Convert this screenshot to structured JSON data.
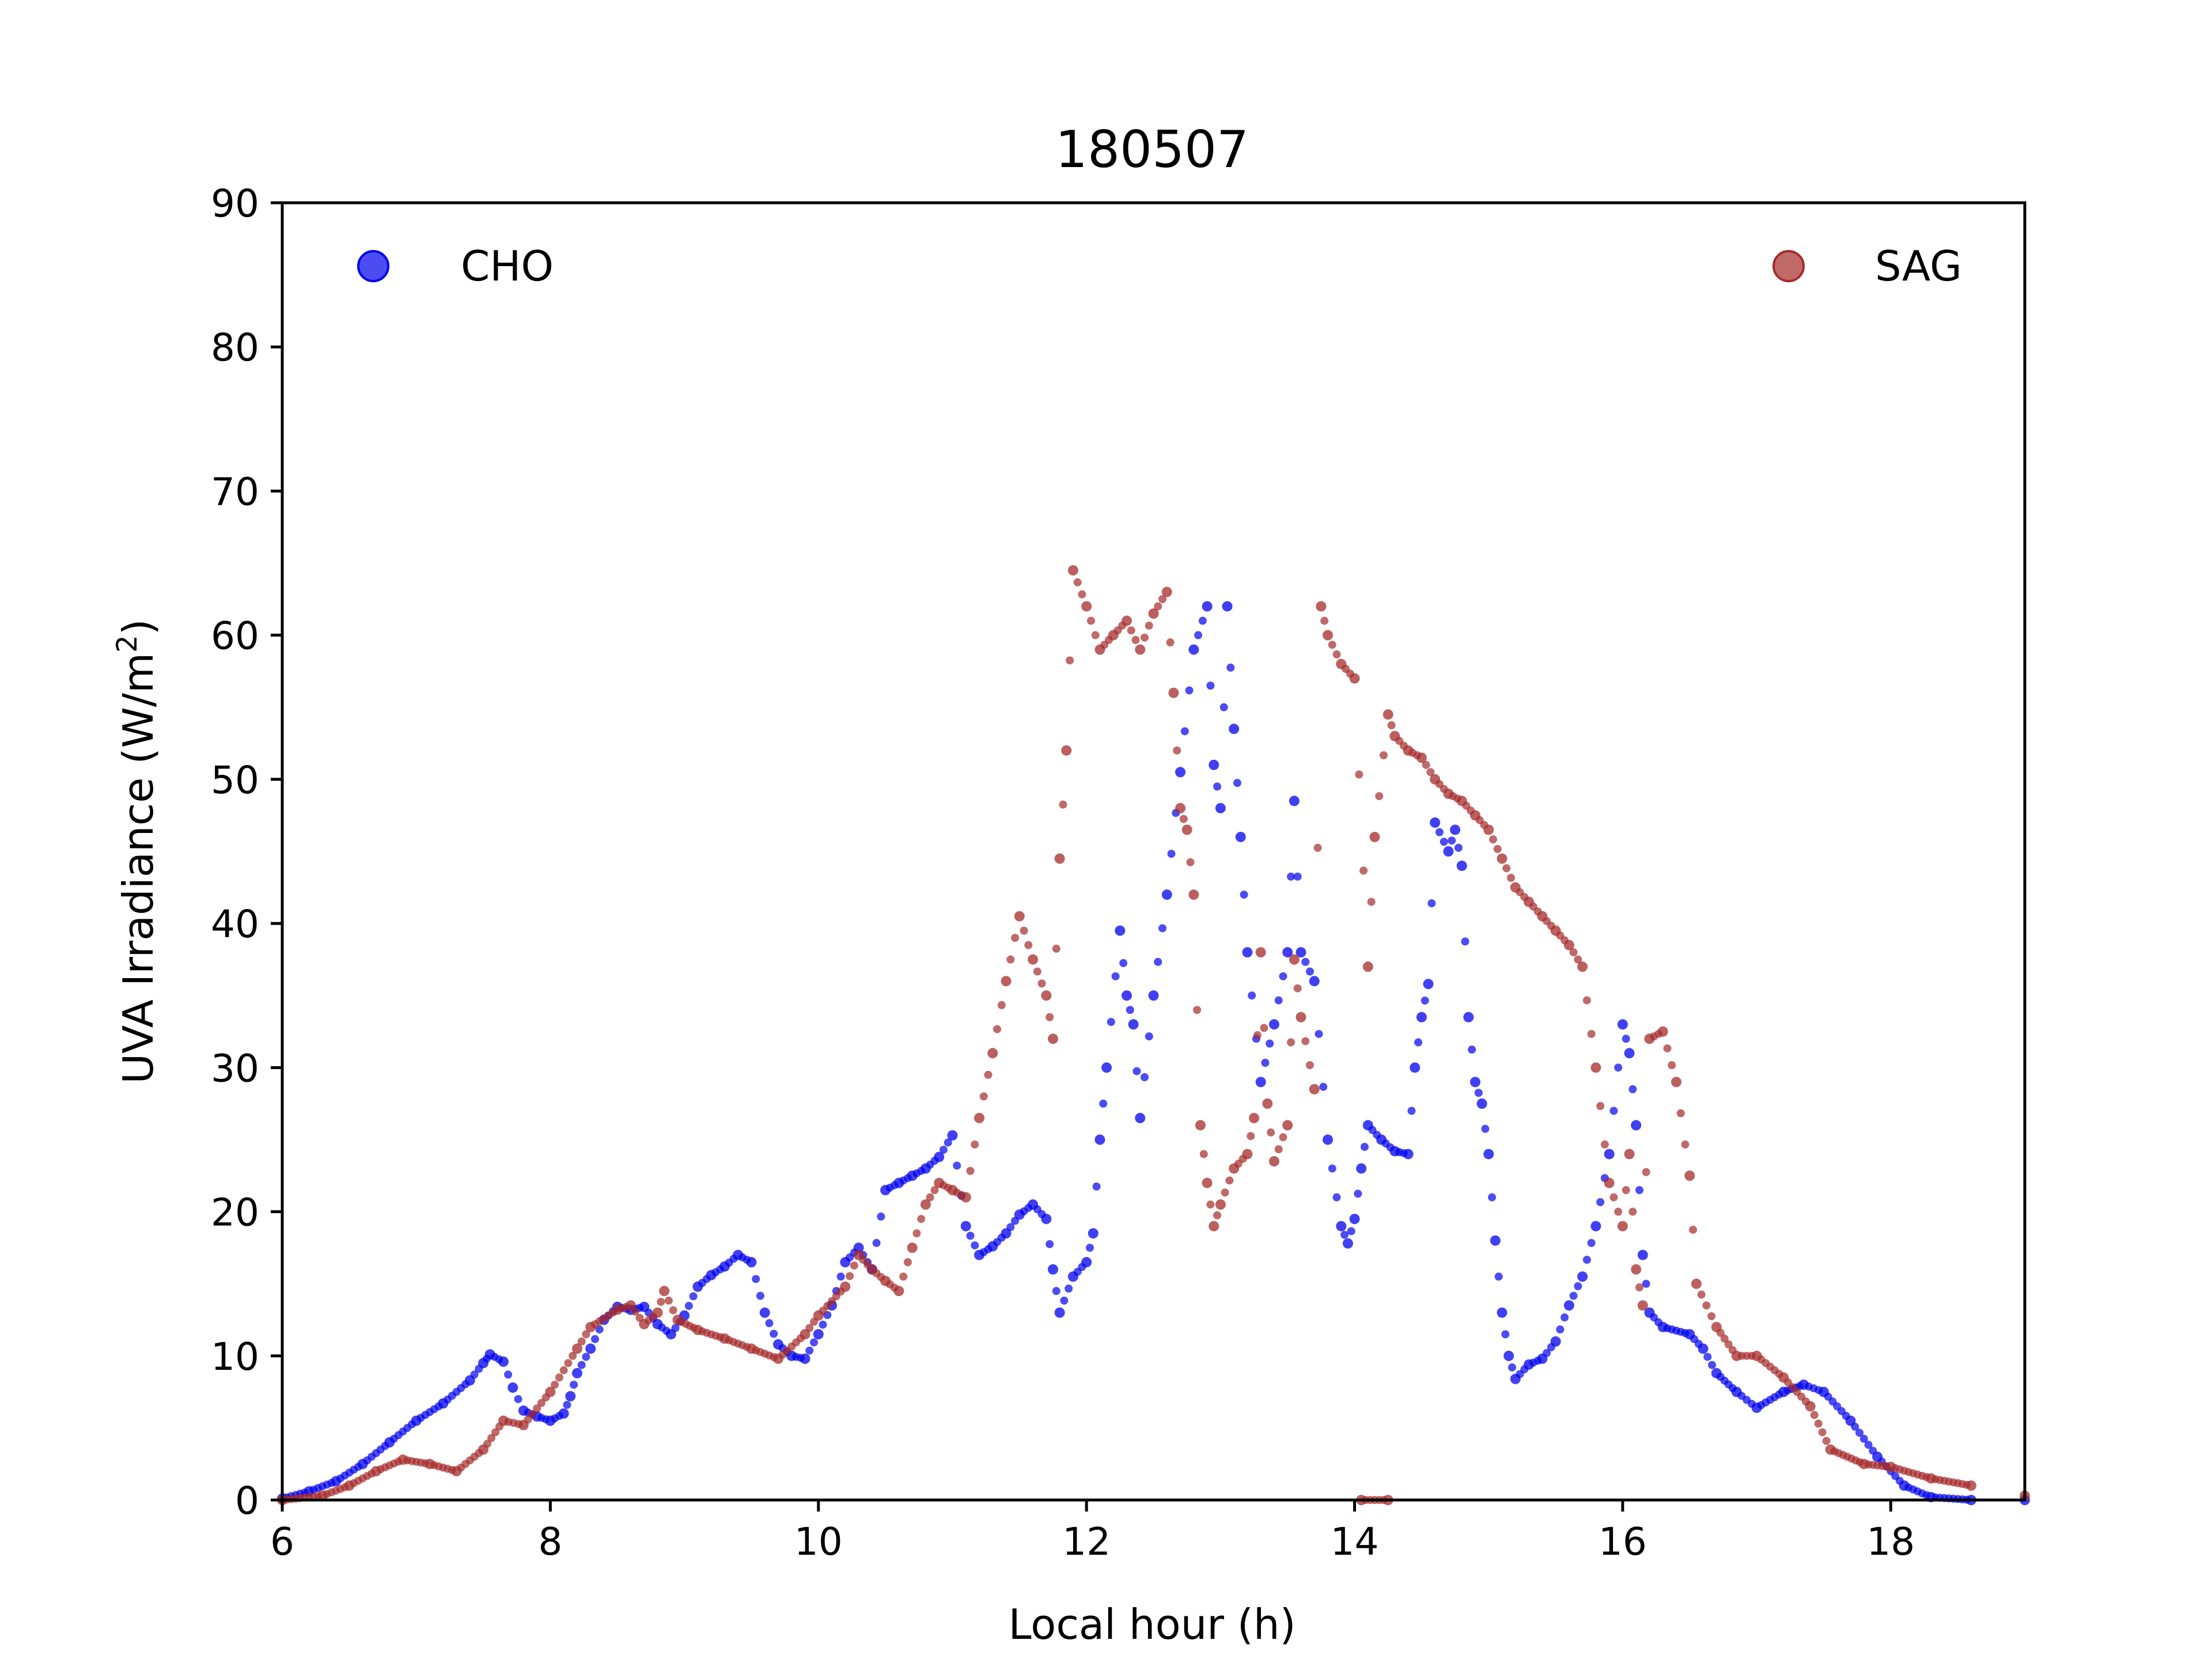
{
  "chart_data": {
    "type": "scatter",
    "title": "180507",
    "xlabel": "Local hour (h)",
    "ylabel": "UVA Irradiance (W/m²)",
    "ylabel_parts": {
      "main": "UVA Irradiance (W/m",
      "sup": "2",
      "end": ")"
    },
    "xlim": [
      6,
      19
    ],
    "ylim": [
      0,
      90
    ],
    "x_ticks": [
      "6",
      "8",
      "10",
      "12",
      "14",
      "16",
      "18"
    ],
    "y_ticks": [
      "0",
      "10",
      "20",
      "30",
      "40",
      "50",
      "60",
      "70",
      "80",
      "90"
    ],
    "grid": false,
    "legend_placement": "top-left and top-right",
    "series": [
      {
        "name": "CHO",
        "color": "#0000ee",
        "legend_position": "top-left",
        "points": [
          [
            6.0,
            0.1
          ],
          [
            6.2,
            0.6
          ],
          [
            6.4,
            1.3
          ],
          [
            6.6,
            2.5
          ],
          [
            6.8,
            4.0
          ],
          [
            7.0,
            5.5
          ],
          [
            7.2,
            6.7
          ],
          [
            7.4,
            8.3
          ],
          [
            7.5,
            9.5
          ],
          [
            7.55,
            10.1
          ],
          [
            7.65,
            9.6
          ],
          [
            7.72,
            7.8
          ],
          [
            7.8,
            6.2
          ],
          [
            7.9,
            5.8
          ],
          [
            8.0,
            5.5
          ],
          [
            8.1,
            6.0
          ],
          [
            8.15,
            7.2
          ],
          [
            8.2,
            8.8
          ],
          [
            8.3,
            10.5
          ],
          [
            8.4,
            12.5
          ],
          [
            8.5,
            13.4
          ],
          [
            8.6,
            13.2
          ],
          [
            8.7,
            13.4
          ],
          [
            8.8,
            12.2
          ],
          [
            8.9,
            11.5
          ],
          [
            9.0,
            12.8
          ],
          [
            9.1,
            14.8
          ],
          [
            9.2,
            15.6
          ],
          [
            9.3,
            16.2
          ],
          [
            9.4,
            17.0
          ],
          [
            9.5,
            16.5
          ],
          [
            9.6,
            13.0
          ],
          [
            9.7,
            10.8
          ],
          [
            9.8,
            10.0
          ],
          [
            9.9,
            9.8
          ],
          [
            10.0,
            11.5
          ],
          [
            10.1,
            13.5
          ],
          [
            10.2,
            16.5
          ],
          [
            10.3,
            17.5
          ],
          [
            10.4,
            16.0
          ],
          [
            10.5,
            21.5
          ],
          [
            10.6,
            22.0
          ],
          [
            10.7,
            22.5
          ],
          [
            10.8,
            23.0
          ],
          [
            10.9,
            23.8
          ],
          [
            11.0,
            25.3
          ],
          [
            11.1,
            19.0
          ],
          [
            11.2,
            17.0
          ],
          [
            11.3,
            17.6
          ],
          [
            11.4,
            18.5
          ],
          [
            11.5,
            19.8
          ],
          [
            11.6,
            20.5
          ],
          [
            11.7,
            19.5
          ],
          [
            11.75,
            16.0
          ],
          [
            11.8,
            13.0
          ],
          [
            11.9,
            15.5
          ],
          [
            12.0,
            16.5
          ],
          [
            12.05,
            18.5
          ],
          [
            12.1,
            25.0
          ],
          [
            12.15,
            30.0
          ],
          [
            12.25,
            39.5
          ],
          [
            12.3,
            35.0
          ],
          [
            12.35,
            33.0
          ],
          [
            12.4,
            26.5
          ],
          [
            12.5,
            35.0
          ],
          [
            12.6,
            42.0
          ],
          [
            12.7,
            50.5
          ],
          [
            12.8,
            59.0
          ],
          [
            12.9,
            62.0
          ],
          [
            12.95,
            51.0
          ],
          [
            13.0,
            48.0
          ],
          [
            13.05,
            62.0
          ],
          [
            13.1,
            53.5
          ],
          [
            13.15,
            46.0
          ],
          [
            13.2,
            38.0
          ],
          [
            13.3,
            29.0
          ],
          [
            13.4,
            33.0
          ],
          [
            13.5,
            38.0
          ],
          [
            13.55,
            48.5
          ],
          [
            13.6,
            38.0
          ],
          [
            13.7,
            36.0
          ],
          [
            13.8,
            25.0
          ],
          [
            13.9,
            19.0
          ],
          [
            13.95,
            17.8
          ],
          [
            14.0,
            19.5
          ],
          [
            14.05,
            23.0
          ],
          [
            14.1,
            26.0
          ],
          [
            14.2,
            25.0
          ],
          [
            14.3,
            24.2
          ],
          [
            14.4,
            24.0
          ],
          [
            14.45,
            30.0
          ],
          [
            14.5,
            33.5
          ],
          [
            14.55,
            35.8
          ],
          [
            14.6,
            47.0
          ],
          [
            14.7,
            45.0
          ],
          [
            14.75,
            46.5
          ],
          [
            14.8,
            44.0
          ],
          [
            14.85,
            33.5
          ],
          [
            14.9,
            29.0
          ],
          [
            14.95,
            27.5
          ],
          [
            15.0,
            24.0
          ],
          [
            15.05,
            18.0
          ],
          [
            15.1,
            13.0
          ],
          [
            15.15,
            10.0
          ],
          [
            15.2,
            8.4
          ],
          [
            15.3,
            9.4
          ],
          [
            15.4,
            9.8
          ],
          [
            15.5,
            11.0
          ],
          [
            15.6,
            13.5
          ],
          [
            15.7,
            15.5
          ],
          [
            15.8,
            19.0
          ],
          [
            15.9,
            24.0
          ],
          [
            16.0,
            33.0
          ],
          [
            16.05,
            31.0
          ],
          [
            16.1,
            26.0
          ],
          [
            16.15,
            17.0
          ],
          [
            16.2,
            13.0
          ],
          [
            16.3,
            12.0
          ],
          [
            16.5,
            11.5
          ],
          [
            16.6,
            10.5
          ],
          [
            16.7,
            8.8
          ],
          [
            16.85,
            7.5
          ],
          [
            17.0,
            6.4
          ],
          [
            17.2,
            7.5
          ],
          [
            17.35,
            8.0
          ],
          [
            17.5,
            7.5
          ],
          [
            17.7,
            5.5
          ],
          [
            17.9,
            3.0
          ],
          [
            18.1,
            1.0
          ],
          [
            18.3,
            0.2
          ],
          [
            18.6,
            0.0
          ],
          [
            19.0,
            0.0
          ]
        ]
      },
      {
        "name": "SAG",
        "color": "#a52a2a",
        "legend_position": "top-right",
        "points": [
          [
            6.0,
            0.0
          ],
          [
            6.3,
            0.3
          ],
          [
            6.5,
            1.0
          ],
          [
            6.7,
            2.0
          ],
          [
            6.9,
            2.8
          ],
          [
            7.1,
            2.5
          ],
          [
            7.3,
            2.0
          ],
          [
            7.5,
            3.5
          ],
          [
            7.65,
            5.5
          ],
          [
            7.8,
            5.2
          ],
          [
            8.0,
            7.5
          ],
          [
            8.2,
            10.5
          ],
          [
            8.3,
            12.0
          ],
          [
            8.5,
            13.2
          ],
          [
            8.6,
            13.5
          ],
          [
            8.7,
            12.2
          ],
          [
            8.8,
            13.0
          ],
          [
            8.85,
            14.5
          ],
          [
            8.95,
            12.5
          ],
          [
            9.1,
            11.8
          ],
          [
            9.3,
            11.2
          ],
          [
            9.5,
            10.5
          ],
          [
            9.7,
            9.8
          ],
          [
            9.9,
            11.5
          ],
          [
            10.0,
            12.8
          ],
          [
            10.2,
            14.8
          ],
          [
            10.3,
            17.0
          ],
          [
            10.4,
            16.0
          ],
          [
            10.5,
            15.2
          ],
          [
            10.6,
            14.5
          ],
          [
            10.7,
            17.5
          ],
          [
            10.8,
            20.5
          ],
          [
            10.9,
            22.0
          ],
          [
            11.0,
            21.5
          ],
          [
            11.1,
            21.0
          ],
          [
            11.2,
            26.5
          ],
          [
            11.3,
            31.0
          ],
          [
            11.4,
            36.0
          ],
          [
            11.5,
            40.5
          ],
          [
            11.6,
            37.5
          ],
          [
            11.7,
            35.0
          ],
          [
            11.75,
            32.0
          ],
          [
            11.8,
            44.5
          ],
          [
            11.85,
            52.0
          ],
          [
            11.9,
            64.5
          ],
          [
            12.0,
            62.0
          ],
          [
            12.1,
            59.0
          ],
          [
            12.2,
            60.0
          ],
          [
            12.3,
            61.0
          ],
          [
            12.4,
            59.0
          ],
          [
            12.5,
            61.5
          ],
          [
            12.6,
            63.0
          ],
          [
            12.65,
            56.0
          ],
          [
            12.7,
            48.0
          ],
          [
            12.75,
            46.5
          ],
          [
            12.8,
            42.0
          ],
          [
            12.85,
            26.0
          ],
          [
            12.9,
            22.0
          ],
          [
            12.95,
            19.0
          ],
          [
            13.0,
            20.5
          ],
          [
            13.1,
            23.0
          ],
          [
            13.2,
            24.0
          ],
          [
            13.25,
            26.5
          ],
          [
            13.3,
            38.0
          ],
          [
            13.35,
            27.5
          ],
          [
            13.4,
            23.5
          ],
          [
            13.5,
            26.0
          ],
          [
            13.55,
            37.5
          ],
          [
            13.6,
            33.5
          ],
          [
            13.7,
            28.5
          ],
          [
            13.75,
            62.0
          ],
          [
            13.8,
            60.0
          ],
          [
            13.9,
            58.0
          ],
          [
            14.0,
            57.0
          ],
          [
            14.1,
            37.0
          ],
          [
            14.15,
            46.0
          ],
          [
            14.25,
            54.5
          ],
          [
            14.3,
            53.0
          ],
          [
            14.4,
            52.0
          ],
          [
            14.5,
            51.5
          ],
          [
            14.6,
            50.0
          ],
          [
            14.7,
            49.0
          ],
          [
            14.8,
            48.5
          ],
          [
            14.9,
            47.5
          ],
          [
            15.0,
            46.5
          ],
          [
            15.1,
            44.5
          ],
          [
            15.2,
            42.5
          ],
          [
            15.3,
            41.5
          ],
          [
            15.4,
            40.5
          ],
          [
            15.5,
            39.5
          ],
          [
            15.6,
            38.5
          ],
          [
            15.7,
            37.0
          ],
          [
            15.8,
            30.0
          ],
          [
            15.9,
            22.0
          ],
          [
            16.0,
            19.0
          ],
          [
            16.05,
            24.0
          ],
          [
            16.1,
            16.0
          ],
          [
            16.15,
            13.5
          ],
          [
            16.2,
            32.0
          ],
          [
            16.3,
            32.5
          ],
          [
            16.4,
            29.0
          ],
          [
            16.5,
            22.5
          ],
          [
            16.55,
            15.0
          ],
          [
            16.7,
            12.0
          ],
          [
            16.85,
            10.0
          ],
          [
            17.0,
            10.0
          ],
          [
            17.2,
            8.5
          ],
          [
            17.4,
            6.5
          ],
          [
            17.55,
            3.5
          ],
          [
            17.8,
            2.5
          ],
          [
            18.0,
            2.3
          ],
          [
            18.3,
            1.5
          ],
          [
            18.6,
            1.0
          ],
          [
            19.0,
            0.3
          ],
          [
            14.05,
            0.0
          ],
          [
            14.25,
            0.0
          ]
        ]
      }
    ]
  }
}
